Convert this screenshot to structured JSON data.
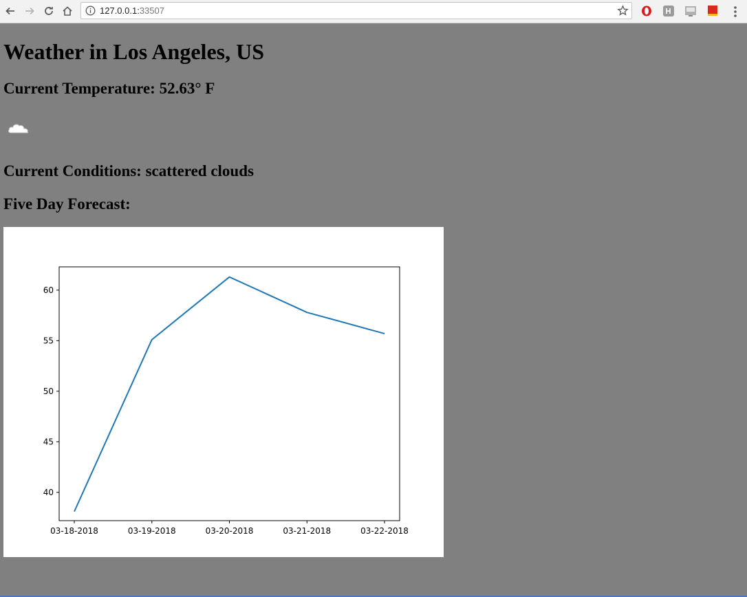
{
  "browser": {
    "url_host": "127.0.0.1:",
    "url_port": "33507"
  },
  "page": {
    "title": "Weather in Los Angeles, US",
    "current_temperature": "Current Temperature: 52.63° F",
    "weather_icon": "cloud-icon",
    "current_conditions": "Current Conditions: scattered clouds",
    "forecast_heading": "Five Day Forecast:"
  },
  "chart_data": {
    "type": "line",
    "title": "",
    "xlabel": "",
    "ylabel": "",
    "categories": [
      "03-18-2018",
      "03-19-2018",
      "03-20-2018",
      "03-21-2018",
      "03-22-2018"
    ],
    "series": [
      {
        "values": [
          38.1,
          55.1,
          61.3,
          57.8,
          55.7
        ],
        "color": "#1f77b4"
      }
    ],
    "yticks": [
      40,
      45,
      50,
      55,
      60
    ],
    "ylim": [
      37.2,
      62.3
    ],
    "grid": false,
    "legend": "none"
  }
}
